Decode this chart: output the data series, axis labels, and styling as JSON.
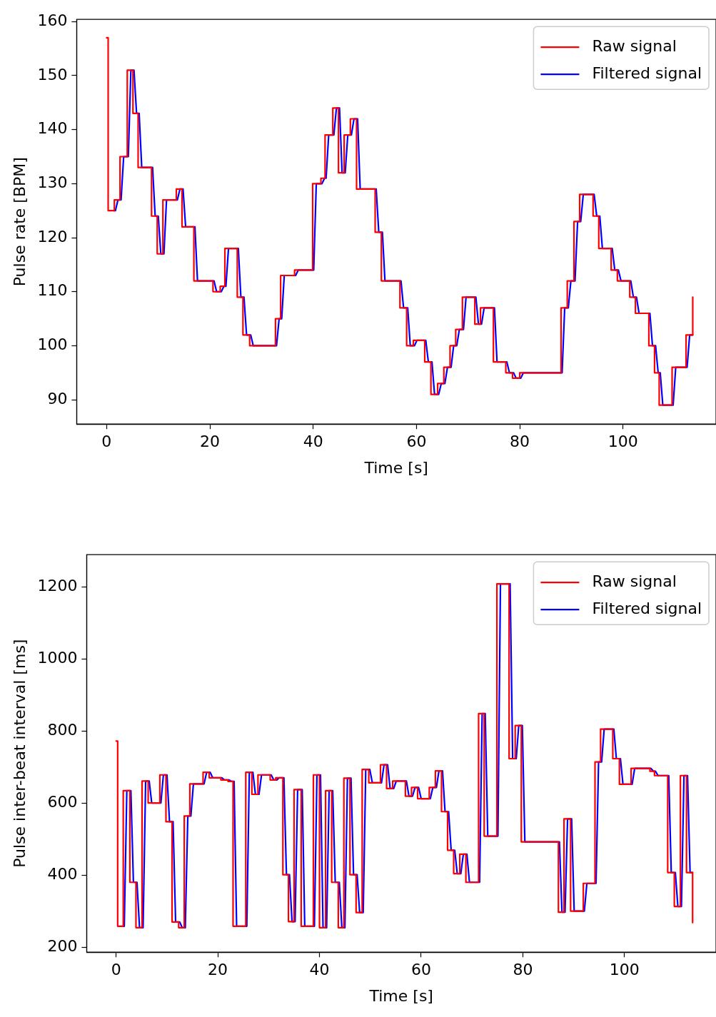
{
  "chart_data": [
    {
      "type": "line",
      "xlabel": "Time [s]",
      "ylabel": "Pulse rate [BPM]",
      "xlim": [
        -5.8,
        118
      ],
      "xticks": [
        0,
        20,
        40,
        60,
        80,
        100
      ],
      "ylim": [
        85.5,
        160.4
      ],
      "yticks": [
        90,
        100,
        110,
        120,
        130,
        140,
        150,
        160
      ],
      "grid": false,
      "legend": "top right",
      "series": [
        {
          "name": "Raw signal",
          "color": "#ff0000",
          "type": "step",
          "x": [
            0,
            0.3,
            1.5,
            2.6,
            4.0,
            5.1,
            6.1,
            8.7,
            9.8,
            10.9,
            13.5,
            14.6,
            16.9,
            20.6,
            22.0,
            22.9,
            25.3,
            26.4,
            27.7,
            32.7,
            33.7,
            36.4,
            39.9,
            41.5,
            42.3,
            43.8,
            44.9,
            46.0,
            47.2,
            48.4,
            52.0,
            53.2,
            56.8,
            58.1,
            59.4,
            61.6,
            62.8,
            64.1,
            65.3,
            66.5,
            67.6,
            68.9,
            71.3,
            72.4,
            74.9,
            77.3,
            78.6,
            80.0,
            88.0,
            89.2,
            90.5,
            91.6,
            94.2,
            95.3,
            97.7,
            98.9,
            101.3,
            102.4,
            105.0,
            106.1,
            107.0,
            109.5,
            112.2,
            113.5
          ],
          "values": [
            157,
            125,
            127,
            135,
            151,
            143,
            133,
            124,
            117,
            127,
            129,
            122,
            112,
            110,
            111,
            118,
            109,
            102,
            100,
            105,
            113,
            114,
            130,
            131,
            139,
            144,
            132,
            139,
            142,
            129,
            121,
            112,
            107,
            100,
            101,
            97,
            91,
            93,
            96,
            100,
            103,
            109,
            104,
            107,
            97,
            95,
            94,
            95,
            107,
            112,
            123,
            128,
            124,
            118,
            114,
            112,
            109,
            106,
            100,
            95,
            89,
            96,
            102,
            109
          ]
        },
        {
          "name": "Filtered signal",
          "color": "#0000ff",
          "type": "line",
          "x": [
            1.4,
            1.7,
            2.2,
            2.8,
            3.3,
            4.2,
            4.7,
            5.3,
            5.8,
            6.3,
            6.8,
            8.9,
            9.4,
            10.0,
            10.5,
            11.1,
            11.6,
            13.7,
            14.2,
            14.8,
            15.3,
            17.1,
            17.6,
            20.8,
            21.3,
            22.2,
            22.7,
            23.1,
            23.6,
            25.5,
            26.0,
            26.6,
            27.1,
            27.9,
            28.4,
            32.9,
            33.4,
            33.9,
            34.4,
            36.6,
            37.1,
            40.1,
            40.6,
            41.7,
            42.2,
            42.5,
            43.0,
            44.0,
            44.5,
            45.1,
            45.6,
            46.2,
            46.7,
            47.4,
            47.9,
            48.6,
            49.1,
            52.2,
            52.7,
            53.4,
            53.9,
            57.0,
            57.5,
            58.3,
            58.8,
            59.6,
            60.1,
            61.8,
            62.3,
            63.0,
            63.5,
            64.3,
            64.8,
            65.5,
            66.0,
            66.7,
            67.2,
            67.8,
            68.3,
            69.1,
            69.6,
            71.5,
            72.0,
            72.6,
            73.1,
            75.1,
            75.6,
            77.5,
            78.0,
            78.8,
            79.3,
            80.2,
            80.7,
            88.2,
            88.7,
            89.4,
            89.9,
            90.7,
            91.2,
            91.8,
            92.3,
            94.4,
            94.9,
            95.5,
            96.0,
            97.9,
            98.4,
            99.1,
            99.6,
            101.5,
            102.0,
            102.6,
            103.1,
            105.2,
            105.7,
            106.3,
            106.8,
            107.2,
            107.7,
            109.7,
            110.2,
            112.4,
            112.9,
            113.5
          ],
          "values": [
            125,
            125,
            127,
            127,
            135,
            135,
            151,
            151,
            143,
            143,
            133,
            133,
            124,
            124,
            117,
            117,
            127,
            127,
            129,
            129,
            122,
            122,
            112,
            112,
            110,
            110,
            111,
            111,
            118,
            118,
            109,
            109,
            102,
            102,
            100,
            100,
            105,
            105,
            113,
            113,
            114,
            114,
            130,
            130,
            131,
            131,
            139,
            139,
            144,
            144,
            132,
            132,
            139,
            139,
            142,
            142,
            129,
            129,
            121,
            121,
            112,
            112,
            107,
            107,
            100,
            100,
            101,
            101,
            97,
            97,
            91,
            91,
            93,
            93,
            96,
            96,
            100,
            100,
            103,
            103,
            109,
            109,
            104,
            104,
            107,
            107,
            97,
            97,
            95,
            95,
            94,
            94,
            95,
            95,
            107,
            107,
            112,
            112,
            123,
            123,
            128,
            128,
            124,
            124,
            118,
            118,
            114,
            114,
            112,
            112,
            109,
            109,
            106,
            106,
            100,
            100,
            95,
            95,
            89,
            89,
            96,
            96,
            102,
            102
          ]
        }
      ]
    },
    {
      "type": "line",
      "xlabel": "Time [s]",
      "ylabel": "Pulse inter-beat interval [ms]",
      "xlim": [
        -5.8,
        118
      ],
      "xticks": [
        0,
        20,
        40,
        60,
        80,
        100
      ],
      "ylim": [
        186,
        1289
      ],
      "yticks": [
        200,
        400,
        600,
        800,
        1000,
        1200
      ],
      "grid": false,
      "legend": "top right",
      "series": [
        {
          "name": "Raw signal",
          "color": "#ff0000",
          "type": "step",
          "x": [
            0,
            0.3,
            1.4,
            2.7,
            3.9,
            5.1,
            6.3,
            8.6,
            9.8,
            11.0,
            12.3,
            13.4,
            14.5,
            17.1,
            18.3,
            20.6,
            22.0,
            23.0,
            25.5,
            26.7,
            27.9,
            30.3,
            31.4,
            32.8,
            33.9,
            35.0,
            36.4,
            38.8,
            40.0,
            41.2,
            42.4,
            43.7,
            44.8,
            46.0,
            47.2,
            48.4,
            49.7,
            52.0,
            53.2,
            54.4,
            56.9,
            58.1,
            59.3,
            61.6,
            62.8,
            64.0,
            65.2,
            66.4,
            67.6,
            68.8,
            71.3,
            72.4,
            74.9,
            77.3,
            78.5,
            79.7,
            87.0,
            88.1,
            89.4,
            91.9,
            94.2,
            95.3,
            97.7,
            99.0,
            101.3,
            105.0,
            105.9,
            108.5,
            109.8,
            111.0,
            112.2,
            113.4
          ],
          "values": [
            772,
            258,
            634,
            380,
            254,
            661,
            600,
            678,
            548,
            270,
            254,
            564,
            653,
            685,
            670,
            664,
            660,
            258,
            685,
            624,
            678,
            664,
            670,
            401,
            271,
            637,
            258,
            678,
            254,
            634,
            380,
            254,
            669,
            401,
            296,
            693,
            656,
            706,
            640,
            661,
            619,
            643,
            612,
            643,
            689,
            576,
            469,
            404,
            458,
            380,
            848,
            508,
            1208,
            723,
            815,
            492,
            297,
            556,
            300,
            377,
            714,
            805,
            723,
            652,
            696,
            688,
            676,
            407,
            313,
            676,
            407,
            268
          ]
        },
        {
          "name": "Filtered signal",
          "color": "#0000ff",
          "type": "line",
          "x": [
            1.4,
            1.6,
            2.1,
            2.9,
            3.4,
            4.1,
            4.6,
            5.3,
            5.8,
            6.5,
            7.0,
            8.8,
            9.3,
            10.0,
            10.5,
            11.2,
            11.7,
            12.5,
            13.0,
            13.6,
            14.1,
            14.7,
            15.2,
            17.3,
            17.8,
            18.5,
            19.0,
            20.8,
            21.3,
            22.2,
            22.7,
            23.2,
            23.7,
            25.7,
            26.2,
            26.9,
            27.4,
            28.1,
            28.6,
            30.5,
            31.0,
            31.6,
            32.1,
            33.0,
            33.5,
            34.1,
            34.6,
            35.2,
            35.7,
            36.6,
            37.1,
            39.0,
            39.5,
            40.2,
            40.7,
            41.4,
            41.9,
            42.6,
            43.1,
            43.9,
            44.4,
            45.0,
            45.5,
            46.2,
            46.7,
            47.4,
            47.9,
            48.6,
            49.1,
            49.9,
            50.4,
            52.2,
            52.7,
            53.4,
            53.9,
            54.6,
            55.1,
            57.1,
            57.6,
            58.3,
            58.8,
            59.5,
            60.0,
            61.8,
            62.3,
            63.0,
            63.5,
            64.2,
            64.7,
            65.4,
            65.9,
            66.6,
            67.1,
            67.8,
            68.3,
            69.0,
            69.5,
            71.5,
            72.0,
            72.6,
            73.1,
            75.1,
            75.6,
            77.5,
            78.0,
            78.7,
            79.2,
            79.9,
            80.4,
            87.2,
            87.7,
            88.3,
            88.8,
            89.6,
            90.1,
            92.1,
            92.6,
            94.4,
            94.9,
            95.5,
            96.0,
            97.9,
            98.4,
            99.2,
            99.7,
            101.5,
            102.0,
            105.2,
            105.7,
            106.1,
            106.6,
            108.7,
            109.2,
            110.0,
            110.5,
            111.2,
            111.7,
            112.4,
            112.9,
            113.4
          ],
          "values": [
            258,
            258,
            634,
            634,
            380,
            380,
            254,
            254,
            661,
            661,
            600,
            600,
            678,
            678,
            548,
            548,
            270,
            270,
            254,
            254,
            564,
            564,
            653,
            653,
            685,
            685,
            670,
            670,
            664,
            664,
            660,
            660,
            258,
            258,
            685,
            685,
            624,
            624,
            678,
            678,
            664,
            664,
            670,
            670,
            401,
            401,
            271,
            271,
            637,
            637,
            258,
            258,
            678,
            678,
            254,
            254,
            634,
            634,
            380,
            380,
            254,
            254,
            669,
            669,
            401,
            401,
            296,
            296,
            693,
            693,
            656,
            656,
            706,
            706,
            640,
            640,
            661,
            661,
            619,
            619,
            643,
            643,
            612,
            612,
            643,
            643,
            689,
            689,
            576,
            576,
            469,
            469,
            404,
            404,
            458,
            458,
            380,
            380,
            848,
            848,
            508,
            508,
            1208,
            1208,
            723,
            723,
            815,
            815,
            492,
            492,
            297,
            297,
            556,
            556,
            300,
            300,
            377,
            377,
            714,
            714,
            805,
            805,
            723,
            723,
            652,
            652,
            696,
            696,
            688,
            688,
            676,
            676,
            407,
            407,
            313,
            313,
            676,
            676,
            407,
            407
          ]
        }
      ]
    }
  ]
}
